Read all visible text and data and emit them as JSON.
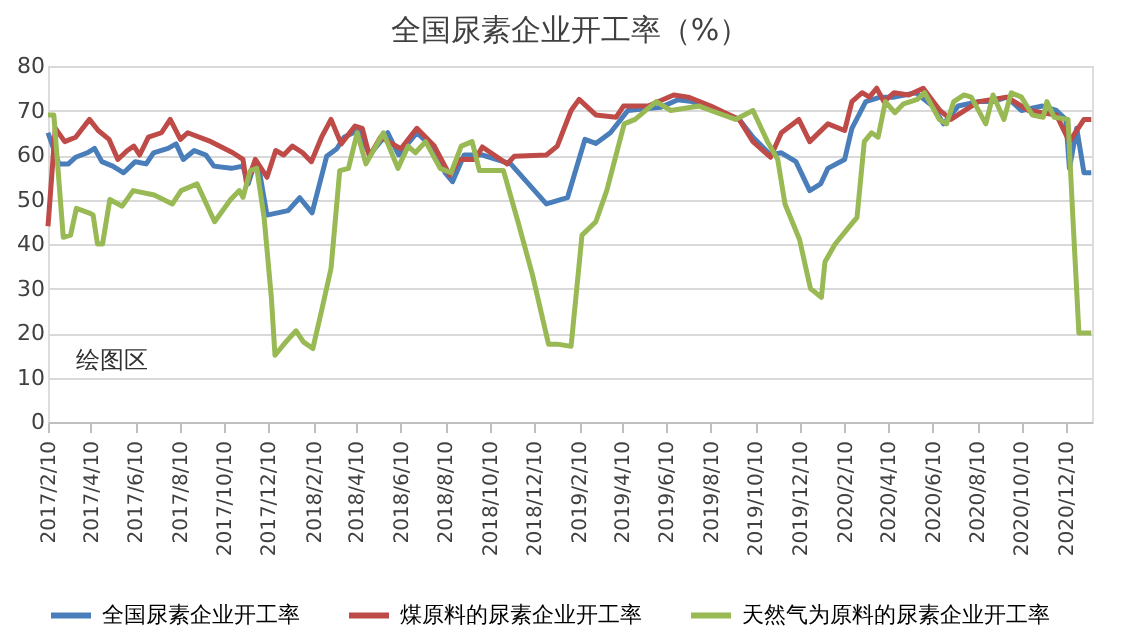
{
  "chart_data": {
    "type": "line",
    "title": "全国尿素企业开工率（%）",
    "xlim": [
      "2017-02-10",
      "2021-01-15"
    ],
    "xticks": [
      {
        "value": "2017-02-10",
        "label": "2017/2/10"
      },
      {
        "value": "2017-04-10",
        "label": "2017/4/10"
      },
      {
        "value": "2017-06-10",
        "label": "2017/6/10"
      },
      {
        "value": "2017-08-10",
        "label": "2017/8/10"
      },
      {
        "value": "2017-10-10",
        "label": "2017/10/10"
      },
      {
        "value": "2017-12-10",
        "label": "2017/12/10"
      },
      {
        "value": "2018-02-10",
        "label": "2018/2/10"
      },
      {
        "value": "2018-04-10",
        "label": "2018/4/10"
      },
      {
        "value": "2018-06-10",
        "label": "2018/6/10"
      },
      {
        "value": "2018-08-10",
        "label": "2018/8/10"
      },
      {
        "value": "2018-10-10",
        "label": "2018/10/10"
      },
      {
        "value": "2018-12-10",
        "label": "2018/12/10"
      },
      {
        "value": "2019-02-10",
        "label": "2019/2/10"
      },
      {
        "value": "2019-04-10",
        "label": "2019/4/10"
      },
      {
        "value": "2019-06-10",
        "label": "2019/6/10"
      },
      {
        "value": "2019-08-10",
        "label": "2019/8/10"
      },
      {
        "value": "2019-10-10",
        "label": "2019/10/10"
      },
      {
        "value": "2019-12-10",
        "label": "2019/12/10"
      },
      {
        "value": "2020-02-10",
        "label": "2020/2/10"
      },
      {
        "value": "2020-04-10",
        "label": "2020/4/10"
      },
      {
        "value": "2020-06-10",
        "label": "2020/6/10"
      },
      {
        "value": "2020-08-10",
        "label": "2020/8/10"
      },
      {
        "value": "2020-10-10",
        "label": "2020/10/10"
      },
      {
        "value": "2020-12-10",
        "label": "2020/12/10"
      }
    ],
    "ylim": [
      0,
      80
    ],
    "yticks": [
      0,
      10,
      20,
      30,
      40,
      50,
      60,
      70,
      80
    ],
    "grid": "y",
    "legend": "bottom",
    "line_style": "solid",
    "marker": "none",
    "annotations": [
      "绘图区"
    ],
    "series": [
      {
        "name": "全国尿素企业开工率",
        "color": "#4a7ebb",
        "x": [
          "2017-02-10",
          "2017-02-25",
          "2017-03-10",
          "2017-03-20",
          "2017-04-05",
          "2017-04-15",
          "2017-04-25",
          "2017-05-10",
          "2017-05-25",
          "2017-06-10",
          "2017-06-25",
          "2017-07-05",
          "2017-07-25",
          "2017-08-05",
          "2017-08-15",
          "2017-08-30",
          "2017-09-15",
          "2017-09-26",
          "2017-10-20",
          "2017-11-05",
          "2017-11-12",
          "2017-11-20",
          "2017-11-28",
          "2017-12-08",
          "2018-01-06",
          "2018-01-22",
          "2018-02-08",
          "2018-02-28",
          "2018-03-14",
          "2018-03-24",
          "2018-04-13",
          "2018-04-28",
          "2018-05-23",
          "2018-06-07",
          "2018-07-02",
          "2018-07-22",
          "2018-08-10",
          "2018-08-20",
          "2018-09-05",
          "2018-09-30",
          "2018-11-08",
          "2018-12-27",
          "2019-01-25",
          "2019-02-18",
          "2019-03-05",
          "2019-03-25",
          "2019-04-18",
          "2019-06-02",
          "2019-06-26",
          "2019-07-15",
          "2019-08-10",
          "2019-09-18",
          "2019-10-07",
          "2019-10-31",
          "2019-11-15",
          "2019-12-05",
          "2019-12-24",
          "2020-01-08",
          "2020-01-18",
          "2020-02-10",
          "2020-02-20",
          "2020-03-10",
          "2020-03-30",
          "2020-04-18",
          "2020-05-18",
          "2020-06-10",
          "2020-06-25",
          "2020-07-15",
          "2020-08-12",
          "2020-09-01",
          "2020-09-20",
          "2020-10-10",
          "2020-11-08",
          "2020-11-27",
          "2020-12-10",
          "2020-12-15",
          "2020-12-25",
          "2021-01-04",
          "2021-01-14"
        ],
        "values": [
          65,
          58,
          58,
          59.5,
          60.5,
          61.5,
          58.5,
          57.5,
          56,
          58.5,
          58,
          60.5,
          61.5,
          62.5,
          59,
          61,
          60,
          57.5,
          57,
          57.5,
          53.5,
          57.5,
          56,
          46.5,
          47.5,
          50.4,
          47,
          59.7,
          61.4,
          64,
          65.6,
          60,
          65,
          60,
          65,
          62,
          56,
          54,
          60,
          60,
          58,
          49,
          50.4,
          63.5,
          62.6,
          65,
          70,
          70.7,
          72.4,
          72,
          70.5,
          68,
          64,
          60,
          60.5,
          58.5,
          52,
          53.5,
          57,
          59,
          66,
          72,
          73,
          73,
          74,
          71,
          67,
          71,
          72,
          72,
          73,
          70,
          71,
          70,
          68,
          57,
          66,
          56,
          56
        ]
      },
      {
        "name": "煤原料的尿素企业开工率",
        "color": "#be4b48",
        "x": [
          "2017-02-10",
          "2017-02-20",
          "2017-03-05",
          "2017-03-20",
          "2017-04-08",
          "2017-04-20",
          "2017-05-05",
          "2017-05-17",
          "2017-05-30",
          "2017-06-08",
          "2017-06-16",
          "2017-06-28",
          "2017-07-16",
          "2017-07-28",
          "2017-08-11",
          "2017-08-21",
          "2017-09-22",
          "2017-10-22",
          "2017-11-05",
          "2017-11-10",
          "2017-11-22",
          "2017-12-08",
          "2017-12-20",
          "2017-12-31",
          "2018-01-12",
          "2018-01-26",
          "2018-02-07",
          "2018-02-21",
          "2018-03-06",
          "2018-03-20",
          "2018-04-08",
          "2018-04-18",
          "2018-04-28",
          "2018-05-13",
          "2018-06-10",
          "2018-07-02",
          "2018-07-26",
          "2018-08-16",
          "2018-08-30",
          "2018-09-20",
          "2018-09-30",
          "2018-11-03",
          "2018-11-13",
          "2018-12-27",
          "2019-01-11",
          "2019-01-30",
          "2019-02-10",
          "2019-03-05",
          "2019-04-02",
          "2019-04-12",
          "2019-05-16",
          "2019-06-20",
          "2019-07-10",
          "2019-08-10",
          "2019-09-18",
          "2019-10-07",
          "2019-10-31",
          "2019-11-15",
          "2019-12-09",
          "2019-12-24",
          "2020-01-18",
          "2020-02-10",
          "2020-02-20",
          "2020-03-05",
          "2020-03-15",
          "2020-03-25",
          "2020-04-04",
          "2020-04-18",
          "2020-05-08",
          "2020-05-28",
          "2020-06-20",
          "2020-07-05",
          "2020-08-12",
          "2020-09-20",
          "2020-10-20",
          "2020-11-27",
          "2020-12-15",
          "2021-01-04",
          "2021-01-14"
        ],
        "values": [
          44,
          66,
          63,
          64,
          68,
          65.5,
          63.5,
          59,
          61,
          62,
          60,
          64,
          65,
          68,
          63.5,
          65,
          63,
          60.5,
          59,
          53.5,
          59,
          55,
          61,
          60,
          62,
          60.5,
          58.5,
          64,
          68,
          62.5,
          66.5,
          66,
          59.7,
          64,
          61.4,
          66,
          62,
          55.5,
          59,
          59,
          61.8,
          58,
          59.7,
          60,
          62,
          70,
          72.5,
          69,
          68.5,
          71,
          71,
          73.5,
          73,
          71,
          68,
          63,
          59.5,
          65,
          68,
          63,
          67,
          65.5,
          72,
          74,
          73,
          75,
          72,
          74,
          73.5,
          75,
          70,
          68,
          72,
          73,
          70,
          69,
          63,
          68,
          68
        ]
      },
      {
        "name": "天然气为原料的尿素企业开工率",
        "color": "#98b954",
        "x": [
          "2017-02-10",
          "2017-02-18",
          "2017-03-03",
          "2017-03-13",
          "2017-03-21",
          "2017-04-07",
          "2017-04-13",
          "2017-04-19",
          "2017-04-26",
          "2017-05-06",
          "2017-05-23",
          "2017-06-07",
          "2017-07-06",
          "2017-07-31",
          "2017-08-12",
          "2017-09-03",
          "2017-09-27",
          "2017-10-19",
          "2017-10-31",
          "2017-11-05",
          "2017-11-15",
          "2017-11-24",
          "2017-12-04",
          "2017-12-14",
          "2017-12-19",
          "2018-01-03",
          "2018-01-17",
          "2018-01-27",
          "2018-02-09",
          "2018-02-21",
          "2018-03-06",
          "2018-03-18",
          "2018-03-30",
          "2018-04-11",
          "2018-04-23",
          "2018-05-17",
          "2018-06-06",
          "2018-06-20",
          "2018-06-30",
          "2018-07-14",
          "2018-08-03",
          "2018-08-18",
          "2018-09-01",
          "2018-09-16",
          "2018-09-26",
          "2018-10-29",
          "2018-11-18",
          "2018-12-08",
          "2018-12-30",
          "2019-01-11",
          "2019-01-30",
          "2019-02-14",
          "2019-03-05",
          "2019-03-20",
          "2019-04-13",
          "2019-04-28",
          "2019-05-27",
          "2019-06-16",
          "2019-07-25",
          "2019-08-10",
          "2019-09-13",
          "2019-10-07",
          "2019-10-27",
          "2019-11-10",
          "2019-11-20",
          "2019-12-10",
          "2019-12-25",
          "2020-01-09",
          "2020-01-14",
          "2020-01-28",
          "2020-02-17",
          "2020-02-27",
          "2020-03-08",
          "2020-03-18",
          "2020-03-27",
          "2020-04-06",
          "2020-04-19",
          "2020-05-01",
          "2020-05-20",
          "2020-05-30",
          "2020-06-19",
          "2020-06-29",
          "2020-07-09",
          "2020-07-23",
          "2020-08-02",
          "2020-08-22",
          "2020-09-01",
          "2020-09-16",
          "2020-09-26",
          "2020-10-10",
          "2020-10-25",
          "2020-11-09",
          "2020-11-14",
          "2020-11-24",
          "2020-12-13",
          "2020-12-20",
          "2020-12-28",
          "2021-01-14"
        ],
        "values": [
          69,
          69,
          41.5,
          42,
          48,
          47,
          46.5,
          40,
          40,
          50,
          48.5,
          52,
          51,
          49,
          52,
          53.5,
          45,
          50,
          52,
          50.5,
          56.5,
          57,
          46,
          28,
          15,
          18,
          20.5,
          18,
          16.5,
          25,
          34.5,
          56.5,
          57,
          65,
          58,
          65,
          57,
          62,
          60.5,
          63,
          57,
          56,
          62,
          63,
          56.5,
          56.5,
          45,
          33,
          17.5,
          17.5,
          17,
          42,
          45,
          52,
          67,
          68,
          72,
          70,
          71,
          70,
          68,
          70,
          63,
          59,
          49,
          41,
          30,
          28,
          36,
          40,
          44,
          46,
          63,
          65,
          64,
          72,
          69.5,
          71.5,
          72.5,
          74,
          68,
          67,
          72,
          73.5,
          73,
          67,
          73.5,
          68,
          74,
          73,
          69,
          68.5,
          72,
          68.5,
          68,
          45,
          20,
          20
        ]
      }
    ]
  }
}
